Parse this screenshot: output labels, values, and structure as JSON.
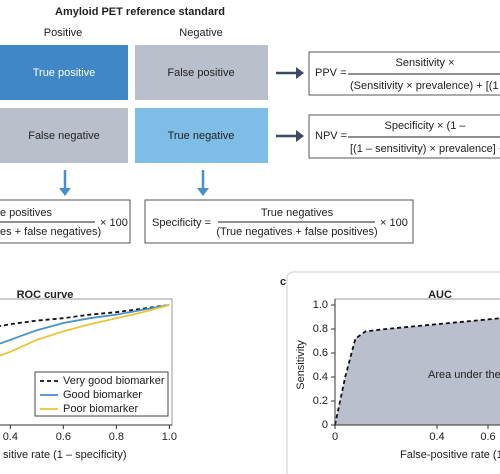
{
  "diagram": {
    "title": "Amyloid PET reference standard",
    "columns": [
      "Positive",
      "Negative"
    ],
    "cells": [
      [
        "True positive",
        "False positive"
      ],
      [
        "False negative",
        "True negative"
      ]
    ],
    "ppv": {
      "label": "PPV =",
      "numerator": "Sensitivity ×",
      "denominator": "(Sensitivity × prevalence) + [(1 –"
    },
    "npv": {
      "label": "NPV =",
      "numerator": "Specificity × (1 –",
      "denominator": "[(1 – sensitivity) × prevalence] +"
    },
    "sensitivity": {
      "numerator": "e positives",
      "denominator": "es + false negatives)",
      "factor": "× 100"
    },
    "specificity": {
      "label": "Specificity =",
      "numerator": "True negatives",
      "denominator": "(True negatives + false positives)",
      "factor": "× 100"
    }
  },
  "chart_data": [
    {
      "type": "line",
      "title": "ROC curve",
      "xlabel": "sitive rate (1 – specificity)",
      "x": [
        0.35,
        0.4,
        0.5,
        0.6,
        0.7,
        0.8,
        0.9,
        1.0
      ],
      "series": [
        {
          "name": "Very good biomarker",
          "color": "#111111",
          "dashed": true,
          "values": [
            0.82,
            0.84,
            0.87,
            0.89,
            0.92,
            0.94,
            0.97,
            1.0
          ]
        },
        {
          "name": "Good biomarker",
          "color": "#4a90c8",
          "dashed": false,
          "values": [
            0.67,
            0.71,
            0.79,
            0.85,
            0.89,
            0.92,
            0.96,
            1.0
          ]
        },
        {
          "name": "Poor biomarker",
          "color": "#e8c53a",
          "dashed": false,
          "values": [
            0.57,
            0.61,
            0.71,
            0.78,
            0.84,
            0.89,
            0.94,
            1.0
          ]
        }
      ],
      "xlim": [
        0,
        1.01
      ],
      "ylim": [
        0,
        1.05
      ],
      "xticks": [
        0.4,
        0.6,
        0.8,
        {
          "value": 1,
          "label": "1.0"
        }
      ],
      "legend": "lower right"
    },
    {
      "type": "area",
      "panel_label": "c",
      "title": "AUC",
      "xlabel": "False-positive rate (1 – sp",
      "ylabel": "Sensitivity",
      "annotation": "Area under the",
      "x": [
        0,
        0.04,
        0.08,
        0.12,
        0.2,
        0.4,
        0.6,
        0.65
      ],
      "values": [
        0,
        0.4,
        0.72,
        0.78,
        0.8,
        0.84,
        0.88,
        0.89
      ],
      "color": "#111111",
      "fill": "#b9bfcc",
      "xlim": [
        0,
        1
      ],
      "ylim": [
        0,
        1.05
      ],
      "xticks": [
        0,
        0.4,
        0.6
      ],
      "yticks": [
        0,
        0.2,
        0.4,
        0.6,
        0.8,
        {
          "value": 1,
          "label": "1.0"
        }
      ]
    }
  ]
}
